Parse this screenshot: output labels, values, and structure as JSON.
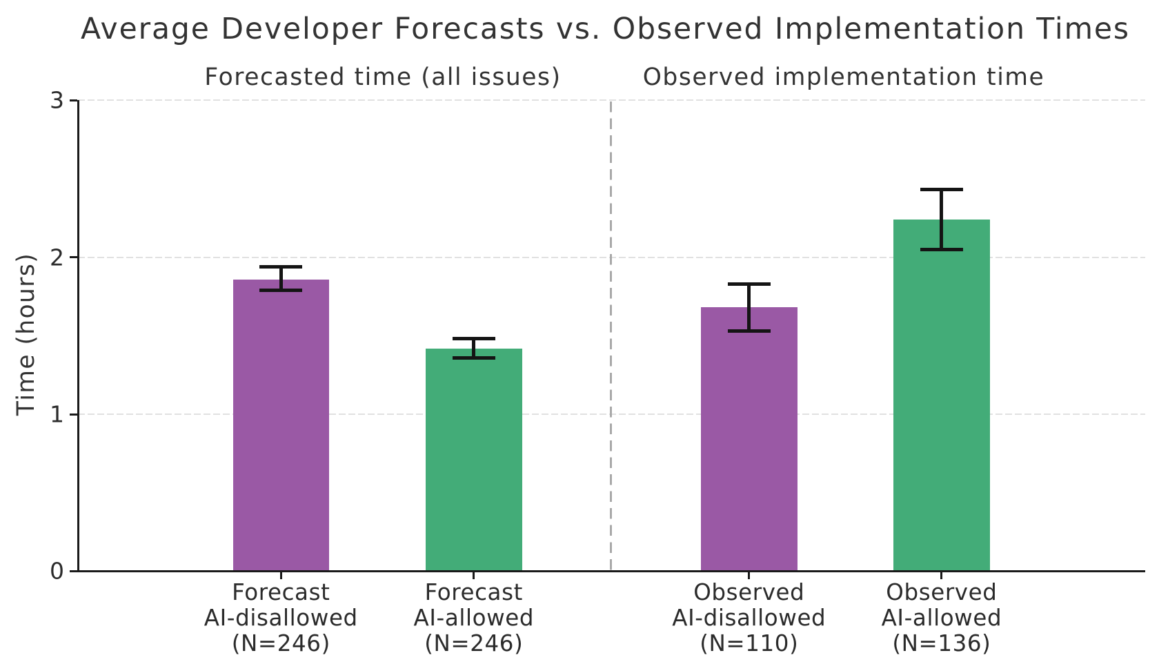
{
  "chart_data": {
    "type": "bar",
    "title": "Average Developer Forecasts vs. Observed Implementation Times",
    "panel_titles": [
      "Forecasted time (all issues)",
      "Observed implementation time"
    ],
    "ylabel": "Time (hours)",
    "xlabel": "",
    "ylim": [
      0,
      3
    ],
    "yticks": [
      "0",
      "1",
      "2",
      "3"
    ],
    "grid": "horizontal dashed gridlines at y=1,2,3",
    "legend": "none",
    "separator": "dashed vertical line between the two panels",
    "categories": [
      "Forecast\nAI-disallowed\n(N=246)",
      "Forecast\nAI-allowed\n(N=246)",
      "Observed\nAI-disallowed\n(N=110)",
      "Observed\nAI-allowed\n(N=136)"
    ],
    "values": [
      1.86,
      1.42,
      1.68,
      2.24
    ],
    "error_low": [
      1.79,
      1.36,
      1.53,
      2.05
    ],
    "error_high": [
      1.94,
      1.48,
      1.83,
      2.43
    ],
    "bar_colors": [
      "#9a59a5",
      "#43ac78",
      "#9a59a5",
      "#43ac78"
    ],
    "colors": {
      "ai_disallowed_purple": "#9a59a5",
      "ai_allowed_green": "#43ac78",
      "error_bar": "#141414",
      "gridline": "#e1e1e1",
      "separator": "#a9a9a9",
      "text": "#333333",
      "background": "#ffffff"
    }
  }
}
